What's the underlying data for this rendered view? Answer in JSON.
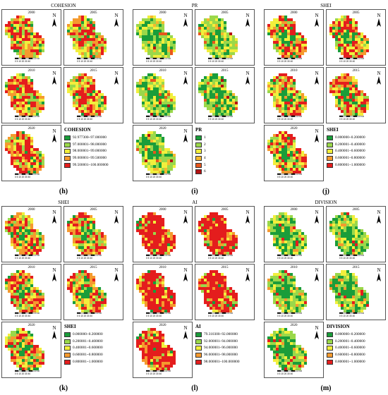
{
  "years": [
    "2000",
    "2005",
    "2010",
    "2015",
    "2020"
  ],
  "north_label": "N",
  "scale_label": "0 5 10 20 30 40",
  "scale_unit": "KM",
  "palettes": {
    "green_red": [
      "#1a9d3a",
      "#9ad84a",
      "#f2ef3c",
      "#f59a2e",
      "#e41d1d"
    ],
    "pr": [
      "#1a9d3a",
      "#9ad84a",
      "#f2ef3c",
      "#f5b82e",
      "#e8561b",
      "#b31212"
    ]
  },
  "panels": [
    {
      "id": "h",
      "title": "COHESION",
      "label": "(h)",
      "legend_title": "COHESION",
      "palette": "green_red",
      "legend": [
        "92.977300~97.000000",
        "97.000001~98.000000",
        "98.000001~99.000000",
        "99.000001~99.500000",
        "99.500001~100.000000"
      ],
      "weights": [
        0.08,
        0.14,
        0.22,
        0.28,
        0.28
      ],
      "center": 4,
      "period": 9
    },
    {
      "id": "i",
      "title": "PR",
      "label": "(i)",
      "legend_title": "PR",
      "palette": "pr",
      "legend": [
        "1",
        "2",
        "3",
        "4",
        "5",
        "6"
      ],
      "weights": [
        0.26,
        0.36,
        0.24,
        0.08,
        0.04,
        0.02
      ],
      "center": 0,
      "period": 7
    },
    {
      "id": "j",
      "title": "SHEI",
      "label": "(j)",
      "legend_title": "SHEI",
      "palette": "green_red",
      "legend": [
        "0.000000~0.200000",
        "0.200001~0.400000",
        "0.400001~0.600000",
        "0.600001~0.800000",
        "0.800001~1.000000"
      ],
      "weights": [
        0.1,
        0.14,
        0.22,
        0.24,
        0.3
      ],
      "center": 0,
      "period": 11
    },
    {
      "id": "k",
      "title": "SHEI",
      "label": "(k)",
      "legend_title": "SHEI",
      "palette": "green_red",
      "legend": [
        "0.000000~0.200000",
        "0.200001~0.400000",
        "0.400001~0.600000",
        "0.600001~0.800000",
        "0.800001~1.000000"
      ],
      "weights": [
        0.1,
        0.14,
        0.22,
        0.24,
        0.3
      ],
      "center": 0,
      "period": 13
    },
    {
      "id": "l",
      "title": "AI",
      "label": "(l)",
      "legend_title": "AI",
      "palette": "green_red",
      "legend": [
        "79.310300~92.000000",
        "92.000001~94.000000",
        "94.000001~96.000000",
        "96.000001~98.000000",
        "98.000001~100.000000"
      ],
      "weights": [
        0.04,
        0.06,
        0.1,
        0.15,
        0.65
      ],
      "center": 4,
      "period": 5
    },
    {
      "id": "m",
      "title": "DIVISION",
      "label": "(m)",
      "legend_title": "DIVISION",
      "palette": "green_red",
      "legend": [
        "0.000000~0.200000",
        "0.200001~0.400000",
        "0.400001~0.600000",
        "0.600001~0.800000",
        "0.800001~1.000000"
      ],
      "weights": [
        0.3,
        0.36,
        0.2,
        0.09,
        0.05
      ],
      "center": 0,
      "period": 17
    }
  ]
}
